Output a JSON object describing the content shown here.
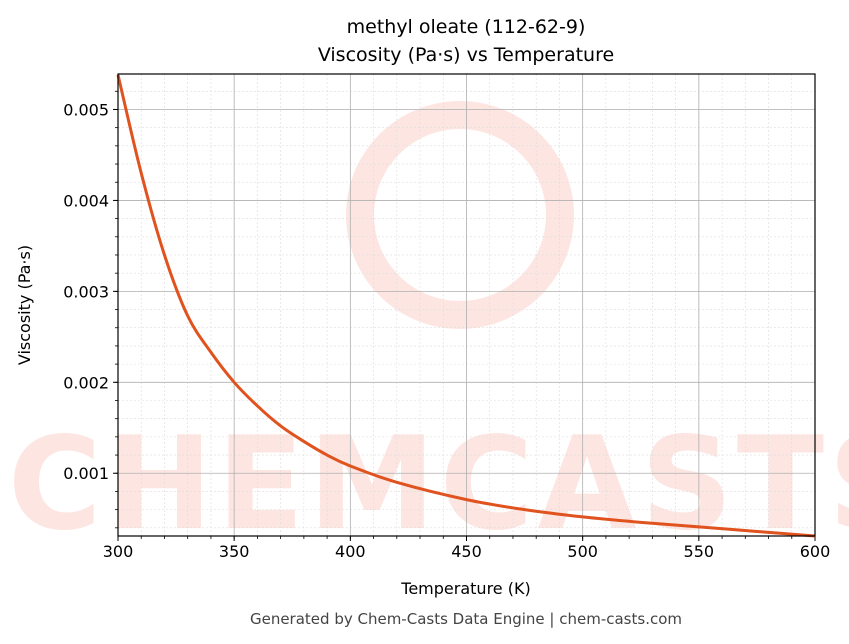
{
  "chart_data": {
    "type": "line",
    "title": "methyl oleate (112-62-9)",
    "subtitle": "Viscosity (Pa·s) vs Temperature",
    "xlabel": "Temperature (K)",
    "ylabel": "Viscosity (Pa·s)",
    "xlim": [
      300,
      600
    ],
    "ylim": [
      0.00031,
      0.00539
    ],
    "xticks": [
      300,
      350,
      400,
      450,
      500,
      550,
      600
    ],
    "xtick_labels": [
      "300",
      "350",
      "400",
      "450",
      "500",
      "550",
      "600"
    ],
    "yticks": [
      0.001,
      0.002,
      0.003,
      0.004,
      0.005
    ],
    "ytick_labels": [
      "0.001",
      "0.002",
      "0.003",
      "0.004",
      "0.005"
    ],
    "grid": true,
    "series": [
      {
        "name": "Viscosity",
        "color": "#e0531f",
        "x": [
          300,
          310,
          320,
          330,
          340,
          350,
          360,
          370,
          380,
          390,
          400,
          420,
          450,
          475,
          500,
          525,
          550,
          575,
          600
        ],
        "y": [
          0.00538,
          0.0043,
          0.0034,
          0.00273,
          0.00233,
          0.002,
          0.00174,
          0.00152,
          0.00135,
          0.0012,
          0.00108,
          0.0009,
          0.00071,
          0.0006,
          0.00052,
          0.00046,
          0.00041,
          0.00036,
          0.00031
        ]
      }
    ]
  },
  "watermark": "CHEMCASTS",
  "footer": "Generated by Chem-Casts Data Engine | chem-casts.com"
}
